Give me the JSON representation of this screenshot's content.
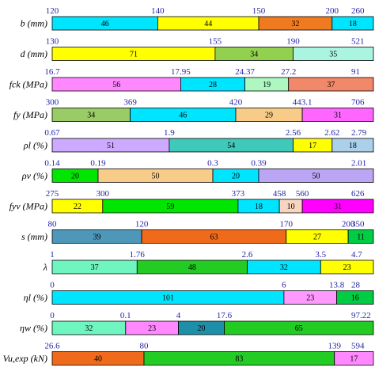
{
  "chart_data": {
    "type": "bar",
    "orientation": "horizontal-stacked",
    "grid": false,
    "legend": "none",
    "colors": {
      "light_blue": "#00e5ff",
      "yellow": "#ffff00",
      "orange": "#f06a1c",
      "cyan_light": "#4dffff",
      "olive_green": "#92d050",
      "mint": "#aaf5e0",
      "pink": "#ff88ff",
      "aqua": "#5ef5f5",
      "pale_green": "#aef7c0",
      "salmon": "#f2886a",
      "green": "#99cc66",
      "violet": "#f07cf0",
      "lavender": "#ccaaff",
      "teal": "#3fc9b8",
      "light_steel": "#aad0ea",
      "bright_green": "#00e600",
      "peach": "#f7cc88",
      "blue_purple": "#bba6f5",
      "magenta": "#ff00ff",
      "steel_blue": "#4f97b8",
      "green2": "#22cc22",
      "pink2": "#ff99ff",
      "teal2": "#1e8fa8",
      "rose": "#ff9ccf"
    },
    "rows": [
      {
        "label": "b (mm)",
        "ticks": [
          "120",
          "140",
          "150",
          "200",
          "260"
        ],
        "segments": [
          {
            "value": 46,
            "color": "#00e5ff"
          },
          {
            "value": 44,
            "color": "#ffff00"
          },
          {
            "value": 32,
            "color": "#f07a20"
          },
          {
            "value": 18,
            "color": "#00e5ff"
          }
        ]
      },
      {
        "label": "d (mm)",
        "ticks": [
          "130",
          "155",
          "190",
          "521"
        ],
        "segments": [
          {
            "value": 71,
            "color": "#ffff00"
          },
          {
            "value": 34,
            "color": "#92d050"
          },
          {
            "value": 35,
            "color": "#aaf5e0"
          }
        ]
      },
      {
        "label": "fck (MPa)",
        "ticks": [
          "16.7",
          "17.95",
          "24.37",
          "27.2",
          "91"
        ],
        "segments": [
          {
            "value": 56,
            "color": "#ff88ff"
          },
          {
            "value": 28,
            "color": "#00e5ff"
          },
          {
            "value": 19,
            "color": "#aef7c0"
          },
          {
            "value": 37,
            "color": "#f2886a"
          }
        ]
      },
      {
        "label": "fy (MPa)",
        "ticks": [
          "300",
          "369",
          "420",
          "443.1",
          "706"
        ],
        "segments": [
          {
            "value": 34,
            "color": "#99cc66"
          },
          {
            "value": 46,
            "color": "#00e5ff"
          },
          {
            "value": 29,
            "color": "#f7cc88"
          },
          {
            "value": 31,
            "color": "#ff66ff"
          }
        ]
      },
      {
        "label": "ρl (%)",
        "ticks": [
          "0.67",
          "1.9",
          "2.56",
          "2.62",
          "2.79"
        ],
        "segments": [
          {
            "value": 51,
            "color": "#ccaaff"
          },
          {
            "value": 54,
            "color": "#3fc9b8"
          },
          {
            "value": 17,
            "color": "#ffff00"
          },
          {
            "value": 18,
            "color": "#aad0ea"
          }
        ]
      },
      {
        "label": "ρv (%)",
        "ticks": [
          "0.14",
          "0.19",
          "0.3",
          "0.39",
          "2.01"
        ],
        "segments": [
          {
            "value": 20,
            "color": "#00e600"
          },
          {
            "value": 50,
            "color": "#f7cc88"
          },
          {
            "value": 20,
            "color": "#00e5ff"
          },
          {
            "value": 50,
            "color": "#bba6f5"
          }
        ]
      },
      {
        "label": "fyv (MPa)",
        "ticks": [
          "275",
          "300",
          "373",
          "458",
          "560",
          "626"
        ],
        "segments": [
          {
            "value": 22,
            "color": "#ffff00"
          },
          {
            "value": 59,
            "color": "#00e600"
          },
          {
            "value": 18,
            "color": "#00e5ff"
          },
          {
            "value": 10,
            "color": "#f7d5c0"
          },
          {
            "value": 31,
            "color": "#ff00ff"
          }
        ]
      },
      {
        "label": "s (mm)",
        "ticks": [
          "80",
          "120",
          "170",
          "200",
          "350"
        ],
        "segments": [
          {
            "value": 39,
            "color": "#4f97b8"
          },
          {
            "value": 63,
            "color": "#f06a1c"
          },
          {
            "value": 27,
            "color": "#ffff00"
          },
          {
            "value": 11,
            "color": "#00cc44"
          }
        ]
      },
      {
        "label": "λ",
        "ticks": [
          "1",
          "1.76",
          "2.6",
          "3.5",
          "4.7"
        ],
        "segments": [
          {
            "value": 37,
            "color": "#6ff5c0"
          },
          {
            "value": 48,
            "color": "#22cc22"
          },
          {
            "value": 32,
            "color": "#00e5ff"
          },
          {
            "value": 23,
            "color": "#ffff00"
          }
        ]
      },
      {
        "label": "ηl (%)",
        "ticks": [
          "0",
          "6",
          "13.8",
          "28"
        ],
        "segments": [
          {
            "value": 101,
            "color": "#00e5ff"
          },
          {
            "value": 23,
            "color": "#ff99ff"
          },
          {
            "value": 16,
            "color": "#00cc44"
          }
        ]
      },
      {
        "label": "ηw (%)",
        "ticks": [
          "0",
          "0.1",
          "4",
          "17.6",
          "97.22"
        ],
        "segments": [
          {
            "value": 32,
            "color": "#6ff5c0"
          },
          {
            "value": 23,
            "color": "#ff88ff"
          },
          {
            "value": 20,
            "color": "#1e8fa8"
          },
          {
            "value": 65,
            "color": "#22cc22"
          }
        ]
      },
      {
        "label": "Vu,exp (kN)",
        "ticks": [
          "26.6",
          "80",
          "139",
          "594"
        ],
        "segments": [
          {
            "value": 40,
            "color": "#f06a1c"
          },
          {
            "value": 83,
            "color": "#22cc22"
          },
          {
            "value": 17,
            "color": "#ff88ff"
          }
        ]
      }
    ]
  }
}
